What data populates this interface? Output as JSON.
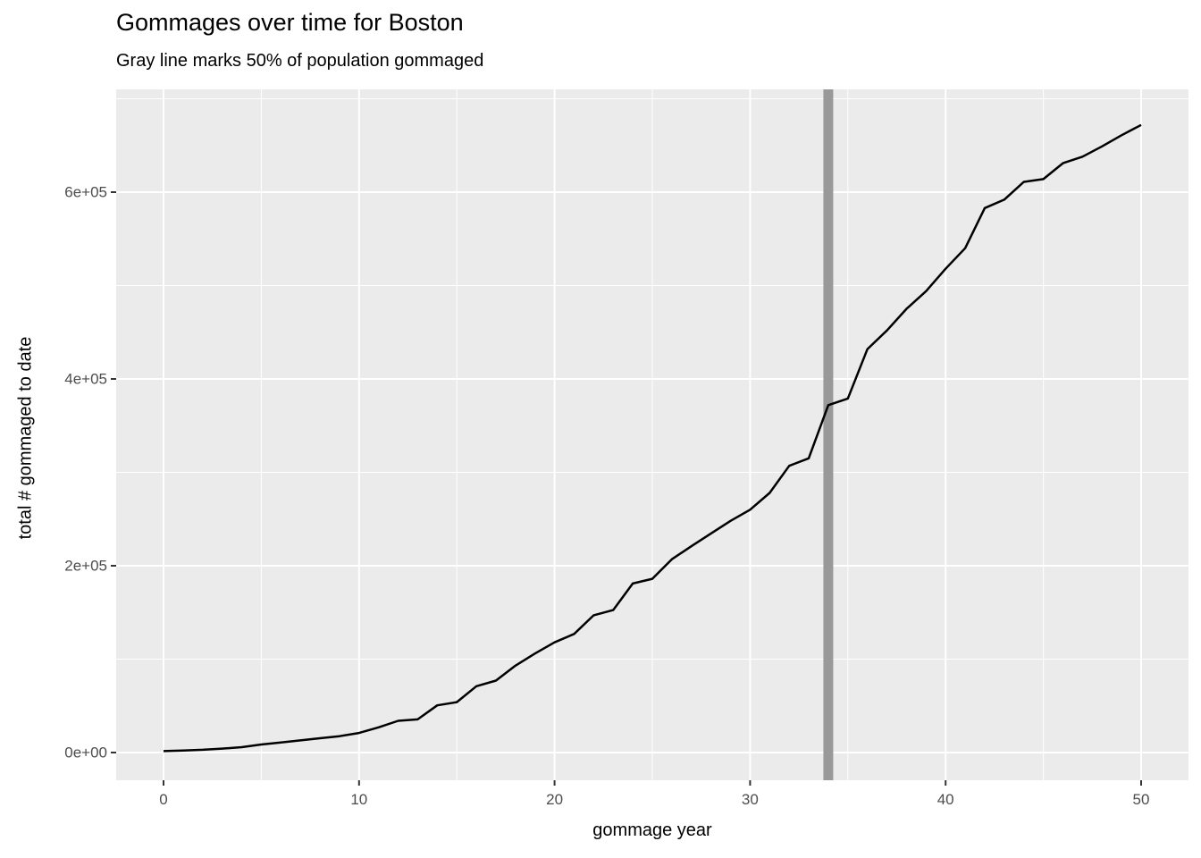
{
  "chart": {
    "title": "Gommages over time for Boston",
    "subtitle": "Gray line marks 50% of population gommaged",
    "xlabel": "gommage year",
    "ylabel": "total # gommaged to date"
  },
  "chart_data": {
    "type": "line",
    "title": "Gommages over time for Boston",
    "subtitle": "Gray line marks 50% of population gommaged",
    "xlabel": "gommage year",
    "ylabel": "total # gommaged to date",
    "x": [
      0,
      1,
      2,
      3,
      4,
      5,
      6,
      7,
      8,
      9,
      10,
      11,
      12,
      13,
      14,
      15,
      16,
      17,
      18,
      19,
      20,
      21,
      22,
      23,
      24,
      25,
      26,
      27,
      28,
      29,
      30,
      31,
      32,
      33,
      34,
      35,
      36,
      37,
      38,
      39,
      40,
      41,
      42,
      43,
      44,
      45,
      46,
      47,
      48,
      49,
      50
    ],
    "values": [
      1500,
      2200,
      3000,
      4200,
      5700,
      8600,
      10700,
      13000,
      15300,
      17500,
      21000,
      27000,
      34000,
      35500,
      50500,
      54000,
      71000,
      77000,
      93000,
      106000,
      118000,
      127000,
      147000,
      152500,
      181000,
      186000,
      207000,
      221000,
      234500,
      248000,
      260000,
      278000,
      307000,
      315000,
      372000,
      379000,
      432000,
      452000,
      475000,
      494000,
      518000,
      540000,
      583000,
      592000,
      611000,
      614000,
      631000,
      638000,
      649000,
      661000,
      672000
    ],
    "series_name": "total gommaged to date",
    "xlim": [
      -2.4,
      52.8
    ],
    "ylim": [
      -33000,
      710000
    ],
    "x_ticks": [
      {
        "value": 0,
        "label": "0"
      },
      {
        "value": 10,
        "label": "10"
      },
      {
        "value": 20,
        "label": "20"
      },
      {
        "value": 30,
        "label": "30"
      },
      {
        "value": 40,
        "label": "40"
      },
      {
        "value": 50,
        "label": "50"
      }
    ],
    "x_minor_ticks": [
      5,
      15,
      25,
      35,
      45
    ],
    "y_ticks": [
      {
        "value": 0,
        "label": "0e+00"
      },
      {
        "value": 200000,
        "label": "2e+05"
      },
      {
        "value": 400000,
        "label": "4e+05"
      },
      {
        "value": 600000,
        "label": "6e+05"
      }
    ],
    "y_minor_ticks": [
      100000,
      300000,
      500000,
      700000
    ],
    "vline": {
      "x": 34,
      "color": "#999999",
      "width": 11,
      "meaning": "50% of population gommaged"
    },
    "grid": "on",
    "legend": "none",
    "colors": {
      "panel_background": "#EBEBEB",
      "gridline": "#FFFFFF",
      "data_line": "#000000",
      "tick_text": "#4D4D4D",
      "tick_mark": "#333333",
      "title_text": "#000000"
    }
  }
}
